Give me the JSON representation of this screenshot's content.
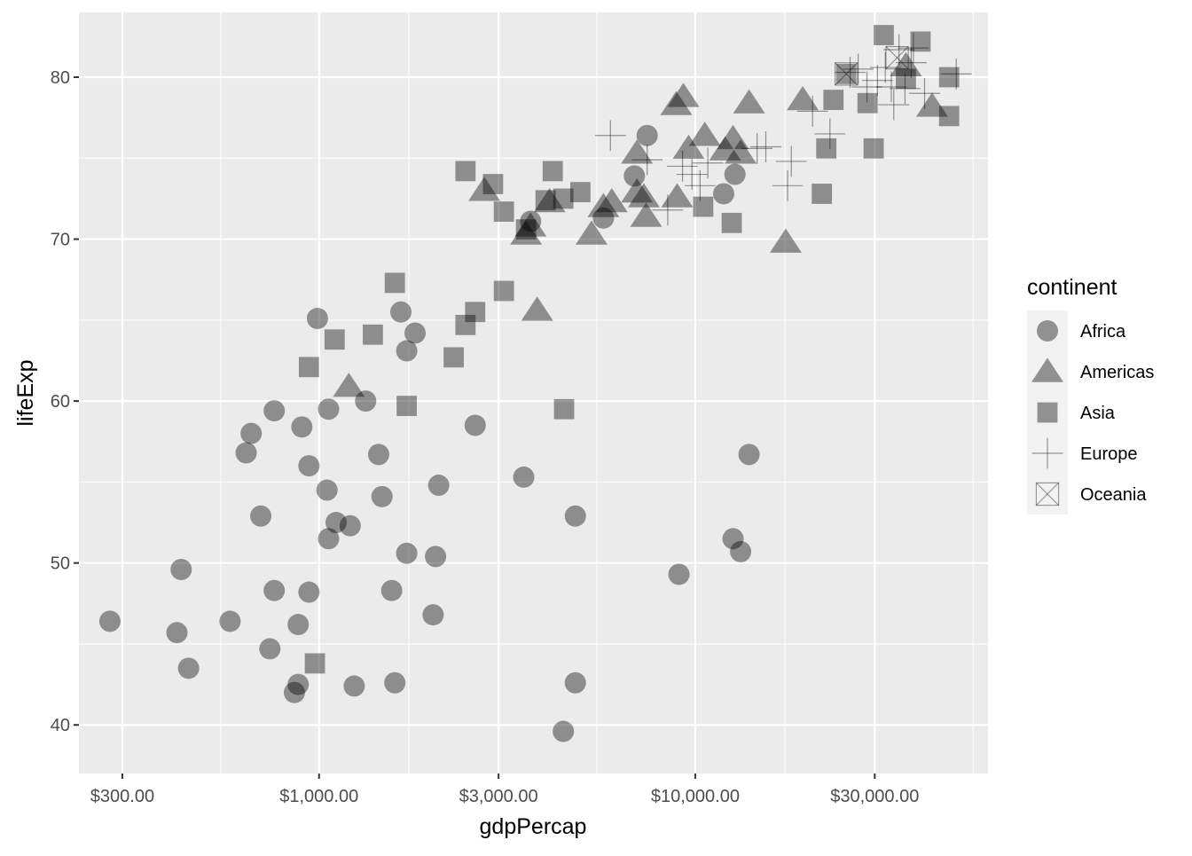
{
  "chart_data": {
    "type": "scatter",
    "title": "",
    "xlabel": "gdpPercap",
    "ylabel": "lifeExp",
    "x_scale": "log10",
    "xlim": [
      230,
      60000
    ],
    "ylim": [
      37,
      84
    ],
    "x_ticks": [
      {
        "value": 300,
        "label": "$300.00"
      },
      {
        "value": 1000,
        "label": "$1,000.00"
      },
      {
        "value": 3000,
        "label": "$3,000.00"
      },
      {
        "value": 10000,
        "label": "$10,000.00"
      },
      {
        "value": 30000,
        "label": "$30,000.00"
      }
    ],
    "x_minor_ticks": [
      548,
      1732,
      5477,
      17320,
      54772
    ],
    "y_ticks": [
      {
        "value": 40,
        "label": "40"
      },
      {
        "value": 50,
        "label": "50"
      },
      {
        "value": 60,
        "label": "60"
      },
      {
        "value": 70,
        "label": "70"
      },
      {
        "value": 80,
        "label": "80"
      }
    ],
    "y_minor_ticks": [
      45,
      55,
      65,
      75
    ],
    "grid": true,
    "panel_background": "#ebebeb",
    "grid_color": "#ffffff",
    "point_color": "#000000",
    "point_alpha": 0.4,
    "legend": {
      "title": "continent",
      "position": "right",
      "entries": [
        {
          "name": "Africa",
          "shape": "circle"
        },
        {
          "name": "Americas",
          "shape": "triangle"
        },
        {
          "name": "Asia",
          "shape": "square"
        },
        {
          "name": "Europe",
          "shape": "plus"
        },
        {
          "name": "Oceania",
          "shape": "boxed-x"
        }
      ]
    },
    "series": [
      {
        "name": "Africa",
        "shape": "circle",
        "points": [
          [
            278,
            46.4
          ],
          [
            419,
            45.7
          ],
          [
            450,
            43.5
          ],
          [
            430,
            49.6
          ],
          [
            580,
            46.4
          ],
          [
            640,
            56.8
          ],
          [
            660,
            58.0
          ],
          [
            700,
            52.9
          ],
          [
            740,
            44.7
          ],
          [
            760,
            59.4
          ],
          [
            760,
            48.3
          ],
          [
            860,
            42.0
          ],
          [
            880,
            42.5
          ],
          [
            880,
            46.2
          ],
          [
            900,
            58.4
          ],
          [
            940,
            56.0
          ],
          [
            940,
            48.2
          ],
          [
            990,
            65.1
          ],
          [
            1050,
            54.5
          ],
          [
            1060,
            59.5
          ],
          [
            1060,
            51.5
          ],
          [
            1110,
            52.5
          ],
          [
            1210,
            52.3
          ],
          [
            1240,
            42.4
          ],
          [
            1330,
            60.0
          ],
          [
            1440,
            56.7
          ],
          [
            1470,
            54.1
          ],
          [
            1560,
            48.3
          ],
          [
            1590,
            42.6
          ],
          [
            1650,
            65.5
          ],
          [
            1710,
            63.1
          ],
          [
            1710,
            50.6
          ],
          [
            1800,
            64.2
          ],
          [
            2010,
            46.8
          ],
          [
            2040,
            50.4
          ],
          [
            2080,
            54.8
          ],
          [
            2600,
            58.5
          ],
          [
            3500,
            55.3
          ],
          [
            3650,
            71.1
          ],
          [
            4460,
            39.6
          ],
          [
            4800,
            52.9
          ],
          [
            4800,
            42.6
          ],
          [
            5700,
            71.3
          ],
          [
            6890,
            73.9
          ],
          [
            7450,
            76.4
          ],
          [
            9050,
            49.3
          ],
          [
            11900,
            72.8
          ],
          [
            12750,
            74.0
          ],
          [
            12600,
            51.5
          ],
          [
            13200,
            50.7
          ],
          [
            13900,
            56.7
          ]
        ]
      },
      {
        "name": "Americas",
        "shape": "triangle",
        "points": [
          [
            1200,
            60.9
          ],
          [
            2750,
            73.0
          ],
          [
            3550,
            70.3
          ],
          [
            3650,
            70.8
          ],
          [
            4100,
            72.3
          ],
          [
            3800,
            65.6
          ],
          [
            5300,
            70.3
          ],
          [
            5700,
            72.0
          ],
          [
            6000,
            72.3
          ],
          [
            7000,
            75.3
          ],
          [
            7000,
            72.9
          ],
          [
            7300,
            72.6
          ],
          [
            7400,
            71.4
          ],
          [
            8900,
            78.3
          ],
          [
            8950,
            72.6
          ],
          [
            9300,
            78.8
          ],
          [
            9600,
            75.6
          ],
          [
            10600,
            76.4
          ],
          [
            12000,
            75.5
          ],
          [
            12600,
            76.2
          ],
          [
            13200,
            75.3
          ],
          [
            13900,
            78.4
          ],
          [
            17400,
            69.8
          ],
          [
            19300,
            78.6
          ],
          [
            36300,
            80.7
          ],
          [
            42600,
            78.2
          ]
        ]
      },
      {
        "name": "Asia",
        "shape": "square",
        "points": [
          [
            975,
            43.8
          ],
          [
            940,
            62.1
          ],
          [
            1100,
            63.8
          ],
          [
            1390,
            64.1
          ],
          [
            1590,
            67.3
          ],
          [
            1710,
            59.7
          ],
          [
            2280,
            62.7
          ],
          [
            2450,
            74.2
          ],
          [
            2450,
            64.7
          ],
          [
            2600,
            65.5
          ],
          [
            2900,
            73.4
          ],
          [
            3100,
            71.7
          ],
          [
            3100,
            66.8
          ],
          [
            3550,
            70.6
          ],
          [
            4000,
            72.4
          ],
          [
            4180,
            74.2
          ],
          [
            4460,
            72.5
          ],
          [
            4480,
            59.5
          ],
          [
            4950,
            72.9
          ],
          [
            10500,
            72.0
          ],
          [
            12500,
            71.0
          ],
          [
            22300,
            75.6
          ],
          [
            23300,
            78.6
          ],
          [
            21700,
            72.8
          ],
          [
            25200,
            80.2
          ],
          [
            28700,
            78.4
          ],
          [
            29800,
            75.6
          ],
          [
            31700,
            82.6
          ],
          [
            36300,
            79.9
          ],
          [
            39700,
            82.2
          ],
          [
            47300,
            80.0
          ],
          [
            47300,
            77.6
          ]
        ]
      },
      {
        "name": "Europe",
        "shape": "plus",
        "points": [
          [
            5950,
            76.4
          ],
          [
            7450,
            74.9
          ],
          [
            8450,
            71.8
          ],
          [
            9250,
            74.5
          ],
          [
            9800,
            74.0
          ],
          [
            10300,
            73.3
          ],
          [
            10800,
            74.7
          ],
          [
            14600,
            75.6
          ],
          [
            15400,
            75.7
          ],
          [
            17600,
            73.3
          ],
          [
            18000,
            74.8
          ],
          [
            20500,
            77.9
          ],
          [
            22800,
            76.5
          ],
          [
            25800,
            80.3
          ],
          [
            27100,
            80.5
          ],
          [
            28600,
            79.4
          ],
          [
            30500,
            79.8
          ],
          [
            32000,
            80.6
          ],
          [
            33200,
            79.4
          ],
          [
            33700,
            78.3
          ],
          [
            34800,
            81.7
          ],
          [
            36100,
            79.3
          ],
          [
            37500,
            80.9
          ],
          [
            38000,
            81.8
          ],
          [
            40700,
            79.0
          ],
          [
            49400,
            80.2
          ]
        ]
      },
      {
        "name": "Oceania",
        "shape": "boxed-x",
        "points": [
          [
            25200,
            80.2
          ],
          [
            34400,
            81.2
          ]
        ]
      }
    ]
  }
}
